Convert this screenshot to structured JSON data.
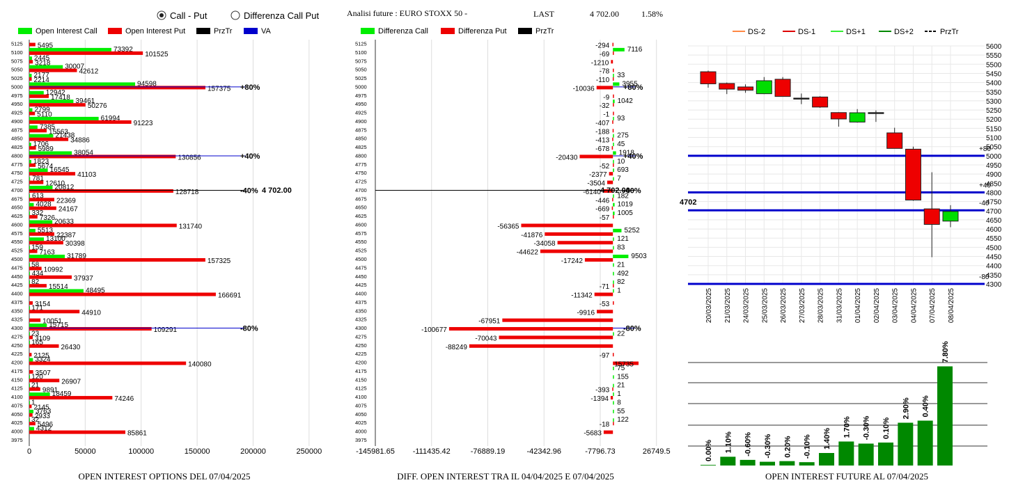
{
  "header": {
    "radio_call_put": "Call - Put",
    "radio_diff": "Differenza Call Put",
    "radio_selected": "call_put",
    "title": "Analisi future : EURO STOXX 50 -",
    "last_label": "LAST",
    "last_value": "4 702.00",
    "change": "1.58%"
  },
  "colors": {
    "call": "#00ee00",
    "put": "#ee0000",
    "va": "#0000cc",
    "bull": "#00dd00",
    "bear": "#ee0000",
    "bar": "#008800"
  },
  "strikes": [
    "5125",
    "5100",
    "5075",
    "5050",
    "5025",
    "5000",
    "4975",
    "4950",
    "4925",
    "4900",
    "4875",
    "4850",
    "4825",
    "4800",
    "4775",
    "4750",
    "4725",
    "4700",
    "4675",
    "4650",
    "4625",
    "4600",
    "4575",
    "4550",
    "4525",
    "4500",
    "4475",
    "4450",
    "4425",
    "4400",
    "4375",
    "4350",
    "4325",
    "4300",
    "4275",
    "4250",
    "4225",
    "4200",
    "4175",
    "4150",
    "4125",
    "4100",
    "4075",
    "4050",
    "4025",
    "4000",
    "3975"
  ],
  "chart_data": [
    {
      "type": "bar",
      "orientation": "horizontal",
      "title": "OPEN INTEREST OPTIONS DEL 07/04/2025",
      "legend": [
        "Open Interest Call",
        "Open Interest Put",
        "PrzTr",
        "VA"
      ],
      "categories": [
        "5125",
        "5100",
        "5075",
        "5050",
        "5025",
        "5000",
        "4975",
        "4950",
        "4925",
        "4900",
        "4875",
        "4850",
        "4825",
        "4800",
        "4775",
        "4750",
        "4725",
        "4700",
        "4675",
        "4650",
        "4625",
        "4600",
        "4575",
        "4550",
        "4525",
        "4500",
        "4475",
        "4450",
        "4425",
        "4400",
        "4375",
        "4350",
        "4325",
        "4300",
        "4275",
        "4250",
        "4225",
        "4200",
        "4175",
        "4150",
        "4125",
        "4100",
        "4075",
        "4050",
        "4025",
        "4000"
      ],
      "series": [
        {
          "name": "Open Interest Call",
          "values": [
            0,
            73392,
            2445,
            30007,
            2177,
            94598,
            12942,
            39461,
            2799,
            61994,
            7385,
            21438,
            1706,
            38054,
            1823,
            16545,
            781,
            20812,
            613,
            4028,
            332,
            20633,
            5513,
            13100,
            159,
            31789,
            58,
            434,
            82,
            48495,
            0,
            171,
            0,
            15715,
            23,
            165,
            0,
            3324,
            0,
            120,
            21,
            18459,
            1,
            3763,
            32,
            4312
          ]
        },
        {
          "name": "Open Interest Put",
          "values": [
            5495,
            101525,
            3218,
            42612,
            2214,
            157375,
            17418,
            50276,
            5110,
            91223,
            15563,
            34886,
            5989,
            130856,
            5674,
            41103,
            12610,
            128718,
            22369,
            24167,
            7326,
            131740,
            22387,
            30398,
            7163,
            157325,
            10992,
            37937,
            15514,
            166691,
            3154,
            44910,
            10051,
            109291,
            3109,
            26430,
            2125,
            140080,
            3507,
            26907,
            9891,
            74246,
            2145,
            2933,
            5496,
            85861
          ]
        }
      ],
      "markers": [
        {
          "strike": "5000",
          "label": "+80%"
        },
        {
          "strike": "4800",
          "label": "+40%"
        },
        {
          "strike": "4700",
          "label": "-40%"
        },
        {
          "strike": "4300",
          "label": "-80%"
        }
      ],
      "przTr_label": "4 702.00",
      "xlim": [
        0,
        270000
      ],
      "xticks": [
        "0",
        "50000",
        "100000",
        "150000",
        "200000",
        "250000"
      ]
    },
    {
      "type": "bar",
      "orientation": "horizontal",
      "title": "DIFF. OPEN INTEREST TRA IL 04/04/2025 E 07/04/2025",
      "legend": [
        "Differenza Call",
        "Differenza Put",
        "PrzTr"
      ],
      "categories": [
        "5125",
        "5100",
        "5075",
        "5050",
        "5025",
        "5000",
        "4975",
        "4950",
        "4925",
        "4900",
        "4875",
        "4850",
        "4825",
        "4800",
        "4775",
        "4750",
        "4725",
        "4700",
        "4675",
        "4650",
        "4625",
        "4600",
        "4575",
        "4550",
        "4525",
        "4500",
        "4475",
        "4450",
        "4425",
        "4400",
        "4375",
        "4350",
        "4325",
        "4300",
        "4275",
        "4250",
        "4225",
        "4200",
        "4175",
        "4150",
        "4125",
        "4100",
        "4075",
        "4050",
        "4025",
        "4000"
      ],
      "series": [
        {
          "name": "Differenza Call",
          "values": [
            0,
            7116,
            0,
            0,
            33,
            3955,
            0,
            1042,
            0,
            93,
            0,
            275,
            45,
            1918,
            10,
            693,
            7,
            0,
            182,
            1019,
            1005,
            0,
            5252,
            121,
            83,
            9503,
            21,
            492,
            82,
            1,
            0,
            0,
            0,
            0,
            22,
            0,
            0,
            0,
            75,
            155,
            21,
            1,
            8,
            55,
            122,
            0
          ]
        },
        {
          "name": "Differenza Put",
          "values": [
            -294,
            -69,
            -1210,
            -78,
            -110,
            -10036,
            -9,
            -32,
            -1,
            -407,
            -188,
            -413,
            -678,
            -20430,
            -52,
            -2377,
            -3504,
            -6140,
            -446,
            -669,
            -57,
            -56365,
            -41876,
            -34058,
            -44622,
            -17242,
            0,
            0,
            -71,
            -11342,
            -53,
            -9916,
            -67951,
            -100677,
            -70043,
            -88249,
            -97,
            15735,
            0,
            0,
            -393,
            -1394,
            0,
            0,
            -18,
            -5683
          ]
        }
      ],
      "markers": [
        {
          "strike": "5000",
          "label": "+80%"
        },
        {
          "strike": "4800",
          "label": "+40%"
        },
        {
          "strike": "4700",
          "label": "-40%"
        },
        {
          "strike": "4300",
          "label": "-80%"
        }
      ],
      "przTr_label": "4 702.00",
      "xlim": [
        -145981.65,
        35000
      ],
      "xticks": [
        "-145981.65",
        "-111435.42",
        "-76889.19",
        "-42342.96",
        "-7796.73",
        "26749.5"
      ]
    },
    {
      "type": "candlestick",
      "legend": [
        "DS-2",
        "DS-1",
        "DS+1",
        "DS+2",
        "PrzTr"
      ],
      "categories": [
        "20/03/2025",
        "21/03/2025",
        "24/03/2025",
        "25/03/2025",
        "26/03/2025",
        "27/03/2025",
        "28/03/2025",
        "31/03/2025",
        "01/04/2025",
        "02/04/2025",
        "03/04/2025",
        "04/04/2025",
        "07/04/2025",
        "08/04/2025"
      ],
      "ohlc": [
        [
          5459,
          5465,
          5372,
          5393
        ],
        [
          5395,
          5400,
          5337,
          5364
        ],
        [
          5376,
          5390,
          5344,
          5358
        ],
        [
          5339,
          5430,
          5337,
          5410
        ],
        [
          5418,
          5430,
          5326,
          5324
        ],
        [
          5315,
          5340,
          5282,
          5311
        ],
        [
          5321,
          5325,
          5262,
          5266
        ],
        [
          5236,
          5238,
          5159,
          5201
        ],
        [
          5184,
          5255,
          5181,
          5235
        ],
        [
          5236,
          5248,
          5185,
          5235
        ],
        [
          5125,
          5153,
          5044,
          5040
        ],
        [
          5036,
          5050,
          4754,
          4758
        ],
        [
          4710,
          4910,
          4446,
          4625
        ],
        [
          4643,
          4730,
          4610,
          4696
        ]
      ],
      "hlines": [
        {
          "value": 5000,
          "label": "+80"
        },
        {
          "value": 4800,
          "label": "+40"
        },
        {
          "value": 4702,
          "label": "-40"
        },
        {
          "value": 4300,
          "label": "-80"
        }
      ],
      "last_label": "4702",
      "ylim": [
        4300,
        5600
      ],
      "yticks": [
        "5600",
        "5550",
        "5500",
        "5450",
        "5400",
        "5350",
        "5300",
        "5250",
        "5200",
        "5150",
        "5100",
        "5050",
        "5000",
        "4950",
        "4900",
        "4850",
        "4800",
        "4750",
        "4700",
        "4650",
        "4600",
        "4550",
        "4500",
        "4450",
        "4400",
        "4350",
        "4300"
      ]
    },
    {
      "type": "bar",
      "title": "OPEN INTEREST FUTURE AL 07/04/2025",
      "values": [
        0.3,
        4.2,
        2.7,
        1.8,
        2.1,
        1.6,
        6.0,
        11.5,
        10.5,
        11.0,
        20.5,
        21.5,
        47.5
      ],
      "labels": [
        "0.00%",
        "1.10%",
        "-0.60%",
        "-0.30%",
        "0.20%",
        "-0.10%",
        "1.40%",
        "1.70%",
        "-0.30%",
        "0.10%",
        "2.90%",
        "0.40%",
        "7.80%"
      ]
    }
  ]
}
